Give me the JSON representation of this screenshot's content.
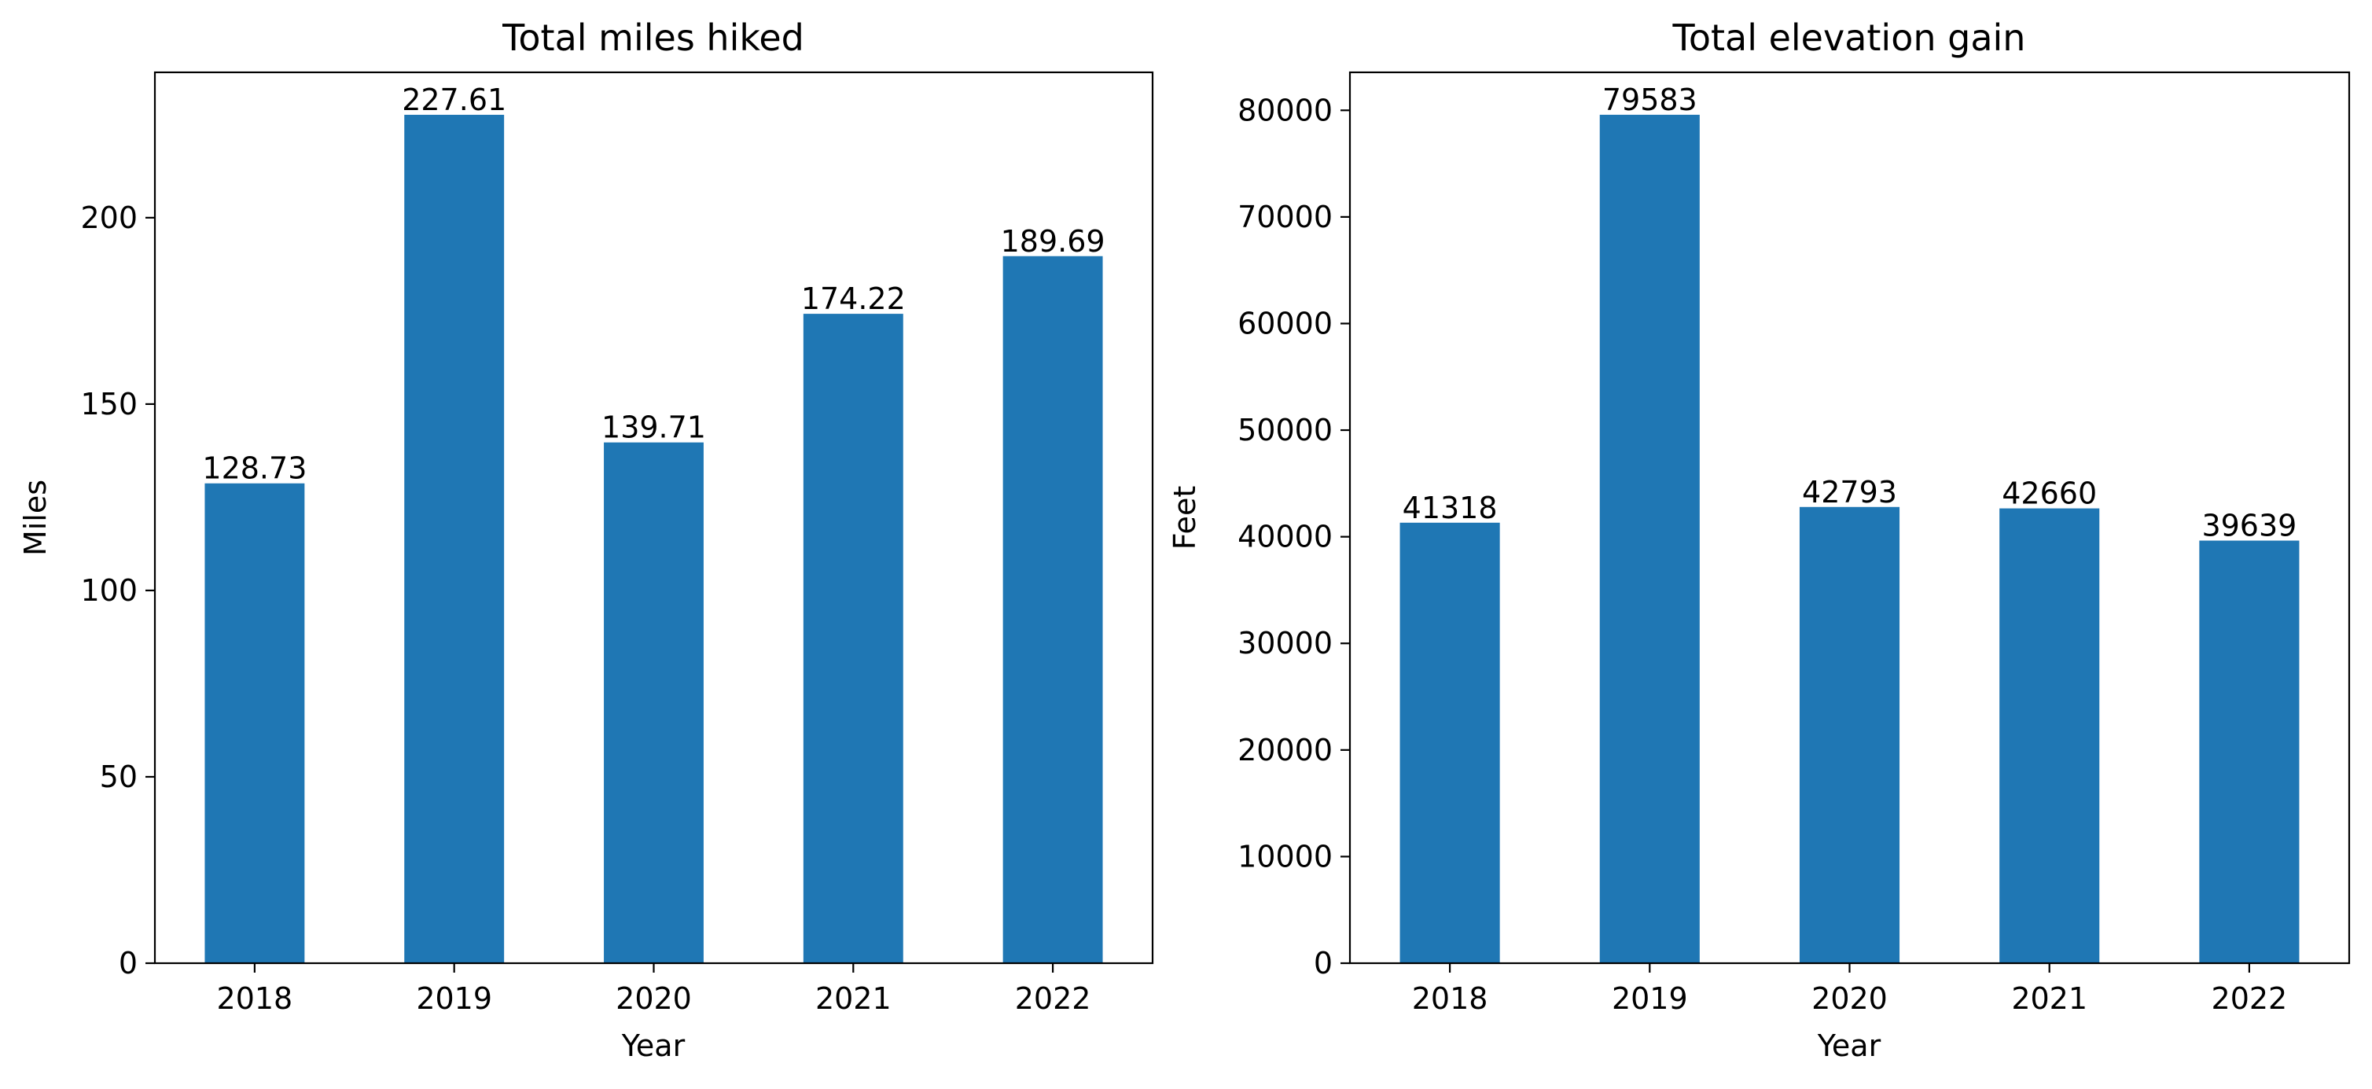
{
  "chart_data": [
    {
      "type": "bar",
      "title": "Total miles hiked",
      "xlabel": "Year",
      "ylabel": "Miles",
      "categories": [
        "2018",
        "2019",
        "2020",
        "2021",
        "2022"
      ],
      "values": [
        128.73,
        227.61,
        139.71,
        174.22,
        189.69
      ],
      "value_labels": [
        "128.73",
        "227.61",
        "139.71",
        "174.22",
        "189.69"
      ],
      "ylim": [
        0,
        239
      ],
      "yticks": [
        0,
        50,
        100,
        150,
        200
      ],
      "grid": false,
      "bar_color": "#1f77b4"
    },
    {
      "type": "bar",
      "title": "Total elevation gain",
      "xlabel": "Year",
      "ylabel": "Feet",
      "categories": [
        "2018",
        "2019",
        "2020",
        "2021",
        "2022"
      ],
      "values": [
        41318,
        79583,
        42793,
        42660,
        39639
      ],
      "value_labels": [
        "41318",
        "79583",
        "42793",
        "42660",
        "39639"
      ],
      "ylim": [
        0,
        83562
      ],
      "yticks": [
        0,
        10000,
        20000,
        30000,
        40000,
        50000,
        60000,
        70000,
        80000
      ],
      "grid": false,
      "bar_color": "#1f77b4"
    }
  ]
}
